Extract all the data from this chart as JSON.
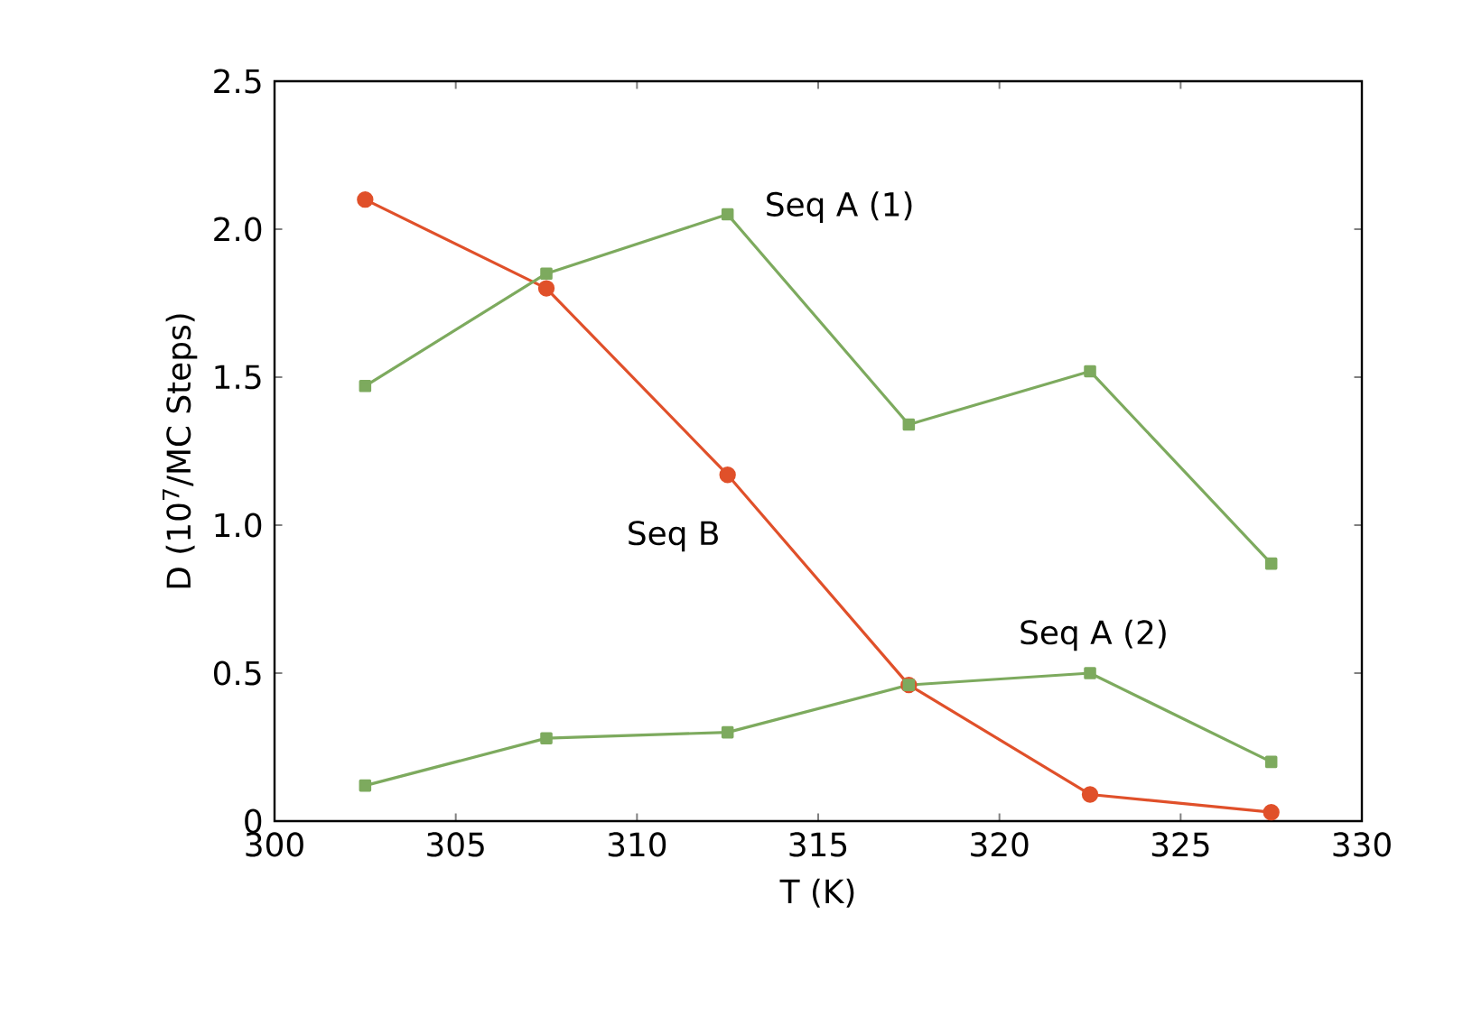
{
  "chart_data": {
    "type": "line",
    "xlabel": "T (K)",
    "ylabel": "D (10$^{7}$/MC Steps)",
    "xlim": [
      300,
      330
    ],
    "xticks": [
      300,
      305,
      310,
      315,
      320,
      325,
      330
    ],
    "ylim": [
      0,
      2.5
    ],
    "yticks": [
      0,
      0.5,
      {
        "value": 1,
        "label": "1.0"
      },
      1.5,
      {
        "value": 2,
        "label": "2.0"
      },
      2.5
    ],
    "x": [
      302.5,
      307.5,
      312.5,
      317.5,
      322.5,
      327.5
    ],
    "series": [
      {
        "name": "Seq A (1)",
        "color": "#7daa5e",
        "marker": "square",
        "values": [
          1.47,
          1.85,
          2.05,
          1.34,
          1.52,
          0.87
        ]
      },
      {
        "name": "Seq A (2)",
        "color": "#7daa5e",
        "marker": "square",
        "values": [
          0.12,
          0.28,
          0.3,
          0.46,
          0.5,
          0.2
        ]
      },
      {
        "name": "Seq B",
        "color": "#e0502a",
        "marker": "circle",
        "values": [
          2.1,
          1.8,
          1.17,
          0.46,
          0.09,
          0.03
        ]
      }
    ],
    "grid": false,
    "line_style": "solid"
  }
}
